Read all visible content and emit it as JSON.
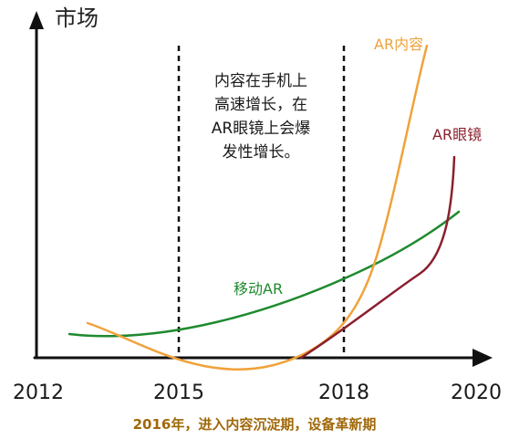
{
  "chart_data": {
    "type": "line",
    "y_axis_label": "市场",
    "x_ticks": [
      "2012",
      "2015",
      "2018",
      "2020"
    ],
    "annotation_lines": [
      "内容在手机上",
      "高速增长，在",
      "AR眼镜上会爆",
      "发性增长。"
    ],
    "series": [
      {
        "name": "移动AR",
        "color": "#1f8a2e"
      },
      {
        "name": "AR内容",
        "color": "#f0a23a"
      },
      {
        "name": "AR眼镜",
        "color": "#8b1f2e"
      }
    ],
    "caption": "2016年，进入内容沉淀期，设备革新期"
  }
}
